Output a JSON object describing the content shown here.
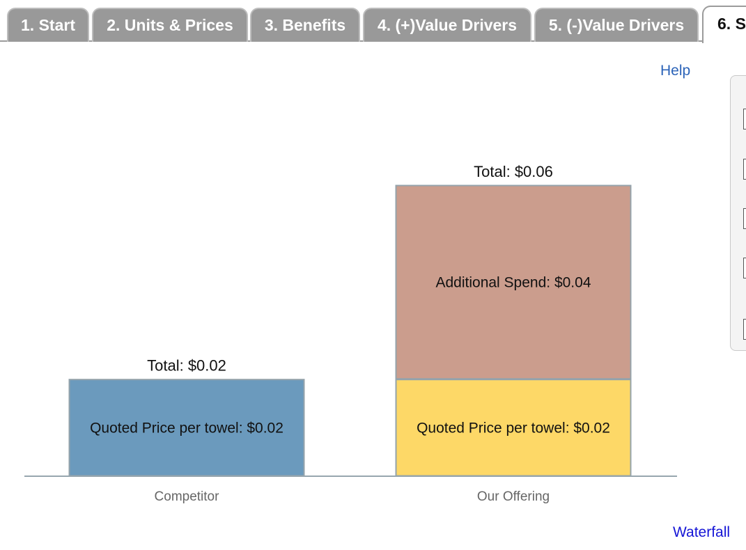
{
  "tabs": [
    {
      "label": "1. Start"
    },
    {
      "label": "2. Units & Prices"
    },
    {
      "label": "3. Benefits"
    },
    {
      "label": "4. (+)Value Drivers"
    },
    {
      "label": "5. (-)Value Drivers"
    },
    {
      "label": "6. S"
    }
  ],
  "links": {
    "help": "Help",
    "waterfall": "Waterfall"
  },
  "colors": {
    "competitor_price": "#6b9abd",
    "our_price": "#fdd867",
    "additional_spend": "#cb9d8d",
    "bar_border": "#94a3ab",
    "baseline": "#97a6ae"
  },
  "chart_data": {
    "type": "bar",
    "stacked": true,
    "categories": [
      "Competitor",
      "Our Offering"
    ],
    "ylim": [
      0,
      0.06
    ],
    "series": [
      {
        "name": "Quoted Price per towel",
        "values": [
          0.02,
          0.02
        ],
        "labels": [
          "Quoted Price per towel: $0.02",
          "Quoted Price per towel: $0.02"
        ]
      },
      {
        "name": "Additional Spend",
        "values": [
          0,
          0.04
        ],
        "labels": [
          "",
          "Additional Spend: $0.04"
        ]
      }
    ],
    "totals": [
      {
        "value": 0.02,
        "label": "Total: $0.02"
      },
      {
        "value": 0.06,
        "label": "Total: $0.06"
      }
    ]
  }
}
